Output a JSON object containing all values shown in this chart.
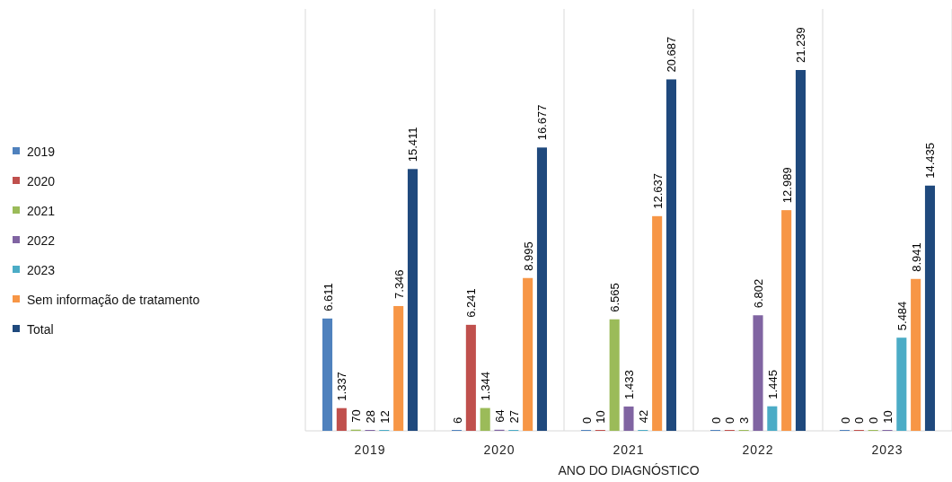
{
  "chart_data": {
    "type": "bar",
    "xlabel": "ANO DO DIAGNÓSTICO",
    "categories": [
      "2019",
      "2020",
      "2021",
      "2022",
      "2023"
    ],
    "legend": "left",
    "grid": "x",
    "data_labels": true,
    "series": [
      {
        "name": "2019",
        "color": "#4f81bd",
        "values": [
          6611,
          6,
          0,
          0,
          0
        ],
        "value_labels": [
          "6.611",
          "6",
          "0",
          "0",
          "0"
        ]
      },
      {
        "name": "2020",
        "color": "#c0504d",
        "values": [
          1337,
          6241,
          10,
          0,
          0
        ],
        "value_labels": [
          "1.337",
          "6.241",
          "10",
          "0",
          "0"
        ]
      },
      {
        "name": "2021",
        "color": "#9bbb59",
        "values": [
          70,
          1344,
          6565,
          3,
          0
        ],
        "value_labels": [
          "70",
          "1.344",
          "6.565",
          "3",
          "0"
        ]
      },
      {
        "name": "2022",
        "color": "#8064a2",
        "values": [
          28,
          64,
          1433,
          6802,
          10
        ],
        "value_labels": [
          "28",
          "64",
          "1.433",
          "6.802",
          "10"
        ]
      },
      {
        "name": "2023",
        "color": "#4bacc6",
        "values": [
          12,
          27,
          42,
          1445,
          5484
        ],
        "value_labels": [
          "12",
          "27",
          "42",
          "1.445",
          "5.484"
        ]
      },
      {
        "name": "Sem informação de tratamento",
        "color": "#f79646",
        "values": [
          7346,
          8995,
          12637,
          12989,
          8941
        ],
        "value_labels": [
          "7.346",
          "8.995",
          "12.637",
          "12.989",
          "8.941"
        ]
      },
      {
        "name": "Total",
        "color": "#1f497d",
        "values": [
          15411,
          16677,
          20687,
          21239,
          14435
        ],
        "value_labels": [
          "15.411",
          "16.677",
          "20.687",
          "21.239",
          "14.435"
        ]
      }
    ]
  }
}
